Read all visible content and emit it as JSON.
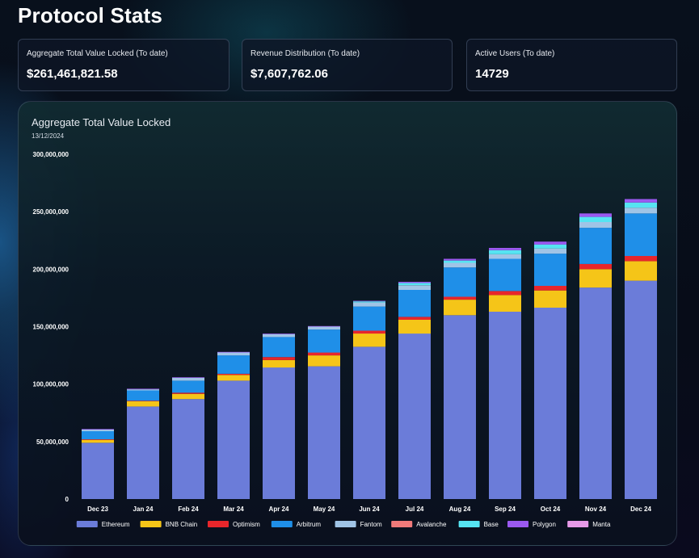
{
  "page": {
    "title": "Protocol Stats"
  },
  "stats": [
    {
      "label": "Aggregate Total Value Locked (To date)",
      "value": "$261,461,821.58"
    },
    {
      "label": "Revenue Distribution (To date)",
      "value": "$7,607,762.06"
    },
    {
      "label": "Active Users (To date)",
      "value": "14729"
    }
  ],
  "chart_panel": {
    "title": "Aggregate Total Value Locked",
    "date": "13/12/2024"
  },
  "chart_data": {
    "type": "bar",
    "stacked": true,
    "title": "Aggregate Total Value Locked",
    "subtitle": "13/12/2024",
    "xlabel": "",
    "ylabel": "",
    "ylim": [
      0,
      300000000
    ],
    "yticks": [
      0,
      50000000,
      100000000,
      150000000,
      200000000,
      250000000,
      300000000
    ],
    "ytick_labels": [
      "0",
      "50,000,000",
      "100,000,000",
      "150,000,000",
      "200,000,000",
      "250,000,000",
      "300,000,000"
    ],
    "grid": false,
    "legend_position": "bottom",
    "categories": [
      "Dec 23",
      "Jan 24",
      "Feb 24",
      "Mar 24",
      "Apr 24",
      "May 24",
      "Jun 24",
      "Jul 24",
      "Aug 24",
      "Sep 24",
      "Oct 24",
      "Nov 24",
      "Dec 24"
    ],
    "series": [
      {
        "name": "Ethereum",
        "color": "#6b7cd9",
        "values": [
          49000000,
          80500000,
          87000000,
          103000000,
          114500000,
          115500000,
          132500000,
          144000000,
          160000000,
          163000000,
          166500000,
          184000000,
          190000000
        ]
      },
      {
        "name": "BNB Chain",
        "color": "#f5c518",
        "values": [
          2500000,
          4500000,
          4500000,
          5000000,
          6500000,
          9500000,
          11500000,
          12000000,
          13500000,
          14500000,
          15000000,
          16000000,
          17000000
        ]
      },
      {
        "name": "Optimism",
        "color": "#e8262b",
        "values": [
          500000,
          500000,
          1000000,
          1000000,
          2500000,
          2500000,
          2500000,
          2500000,
          2500000,
          3500000,
          4000000,
          4500000,
          4500000
        ]
      },
      {
        "name": "Arbitrum",
        "color": "#1f8fe8",
        "values": [
          7000000,
          9000000,
          10500000,
          16000000,
          17500000,
          20000000,
          21000000,
          23500000,
          25500000,
          28000000,
          28000000,
          31500000,
          37000000
        ]
      },
      {
        "name": "Fantom",
        "color": "#a0c4e6",
        "values": [
          1500000,
          1000000,
          2500000,
          2500000,
          2500000,
          2500000,
          3500000,
          4000000,
          4000000,
          4000000,
          4500000,
          5000000,
          5000000
        ]
      },
      {
        "name": "Avalanche",
        "color": "#f07a7a",
        "values": [
          0,
          0,
          0,
          0,
          0,
          0,
          0,
          0,
          0,
          0,
          0,
          0,
          0
        ]
      },
      {
        "name": "Base",
        "color": "#56e4f2",
        "values": [
          0,
          0,
          0,
          0,
          0,
          0,
          1000000,
          2000000,
          2000000,
          3500000,
          3500000,
          4500000,
          4500000
        ]
      },
      {
        "name": "Polygon",
        "color": "#9b59f0",
        "values": [
          500000,
          500000,
          500000,
          500000,
          500000,
          500000,
          500000,
          1000000,
          1500000,
          2000000,
          2500000,
          3000000,
          3000000
        ]
      },
      {
        "name": "Manta",
        "color": "#e79ae8",
        "values": [
          0,
          0,
          0,
          0,
          0,
          0,
          0,
          0,
          0,
          0,
          0,
          0,
          0
        ]
      }
    ]
  }
}
